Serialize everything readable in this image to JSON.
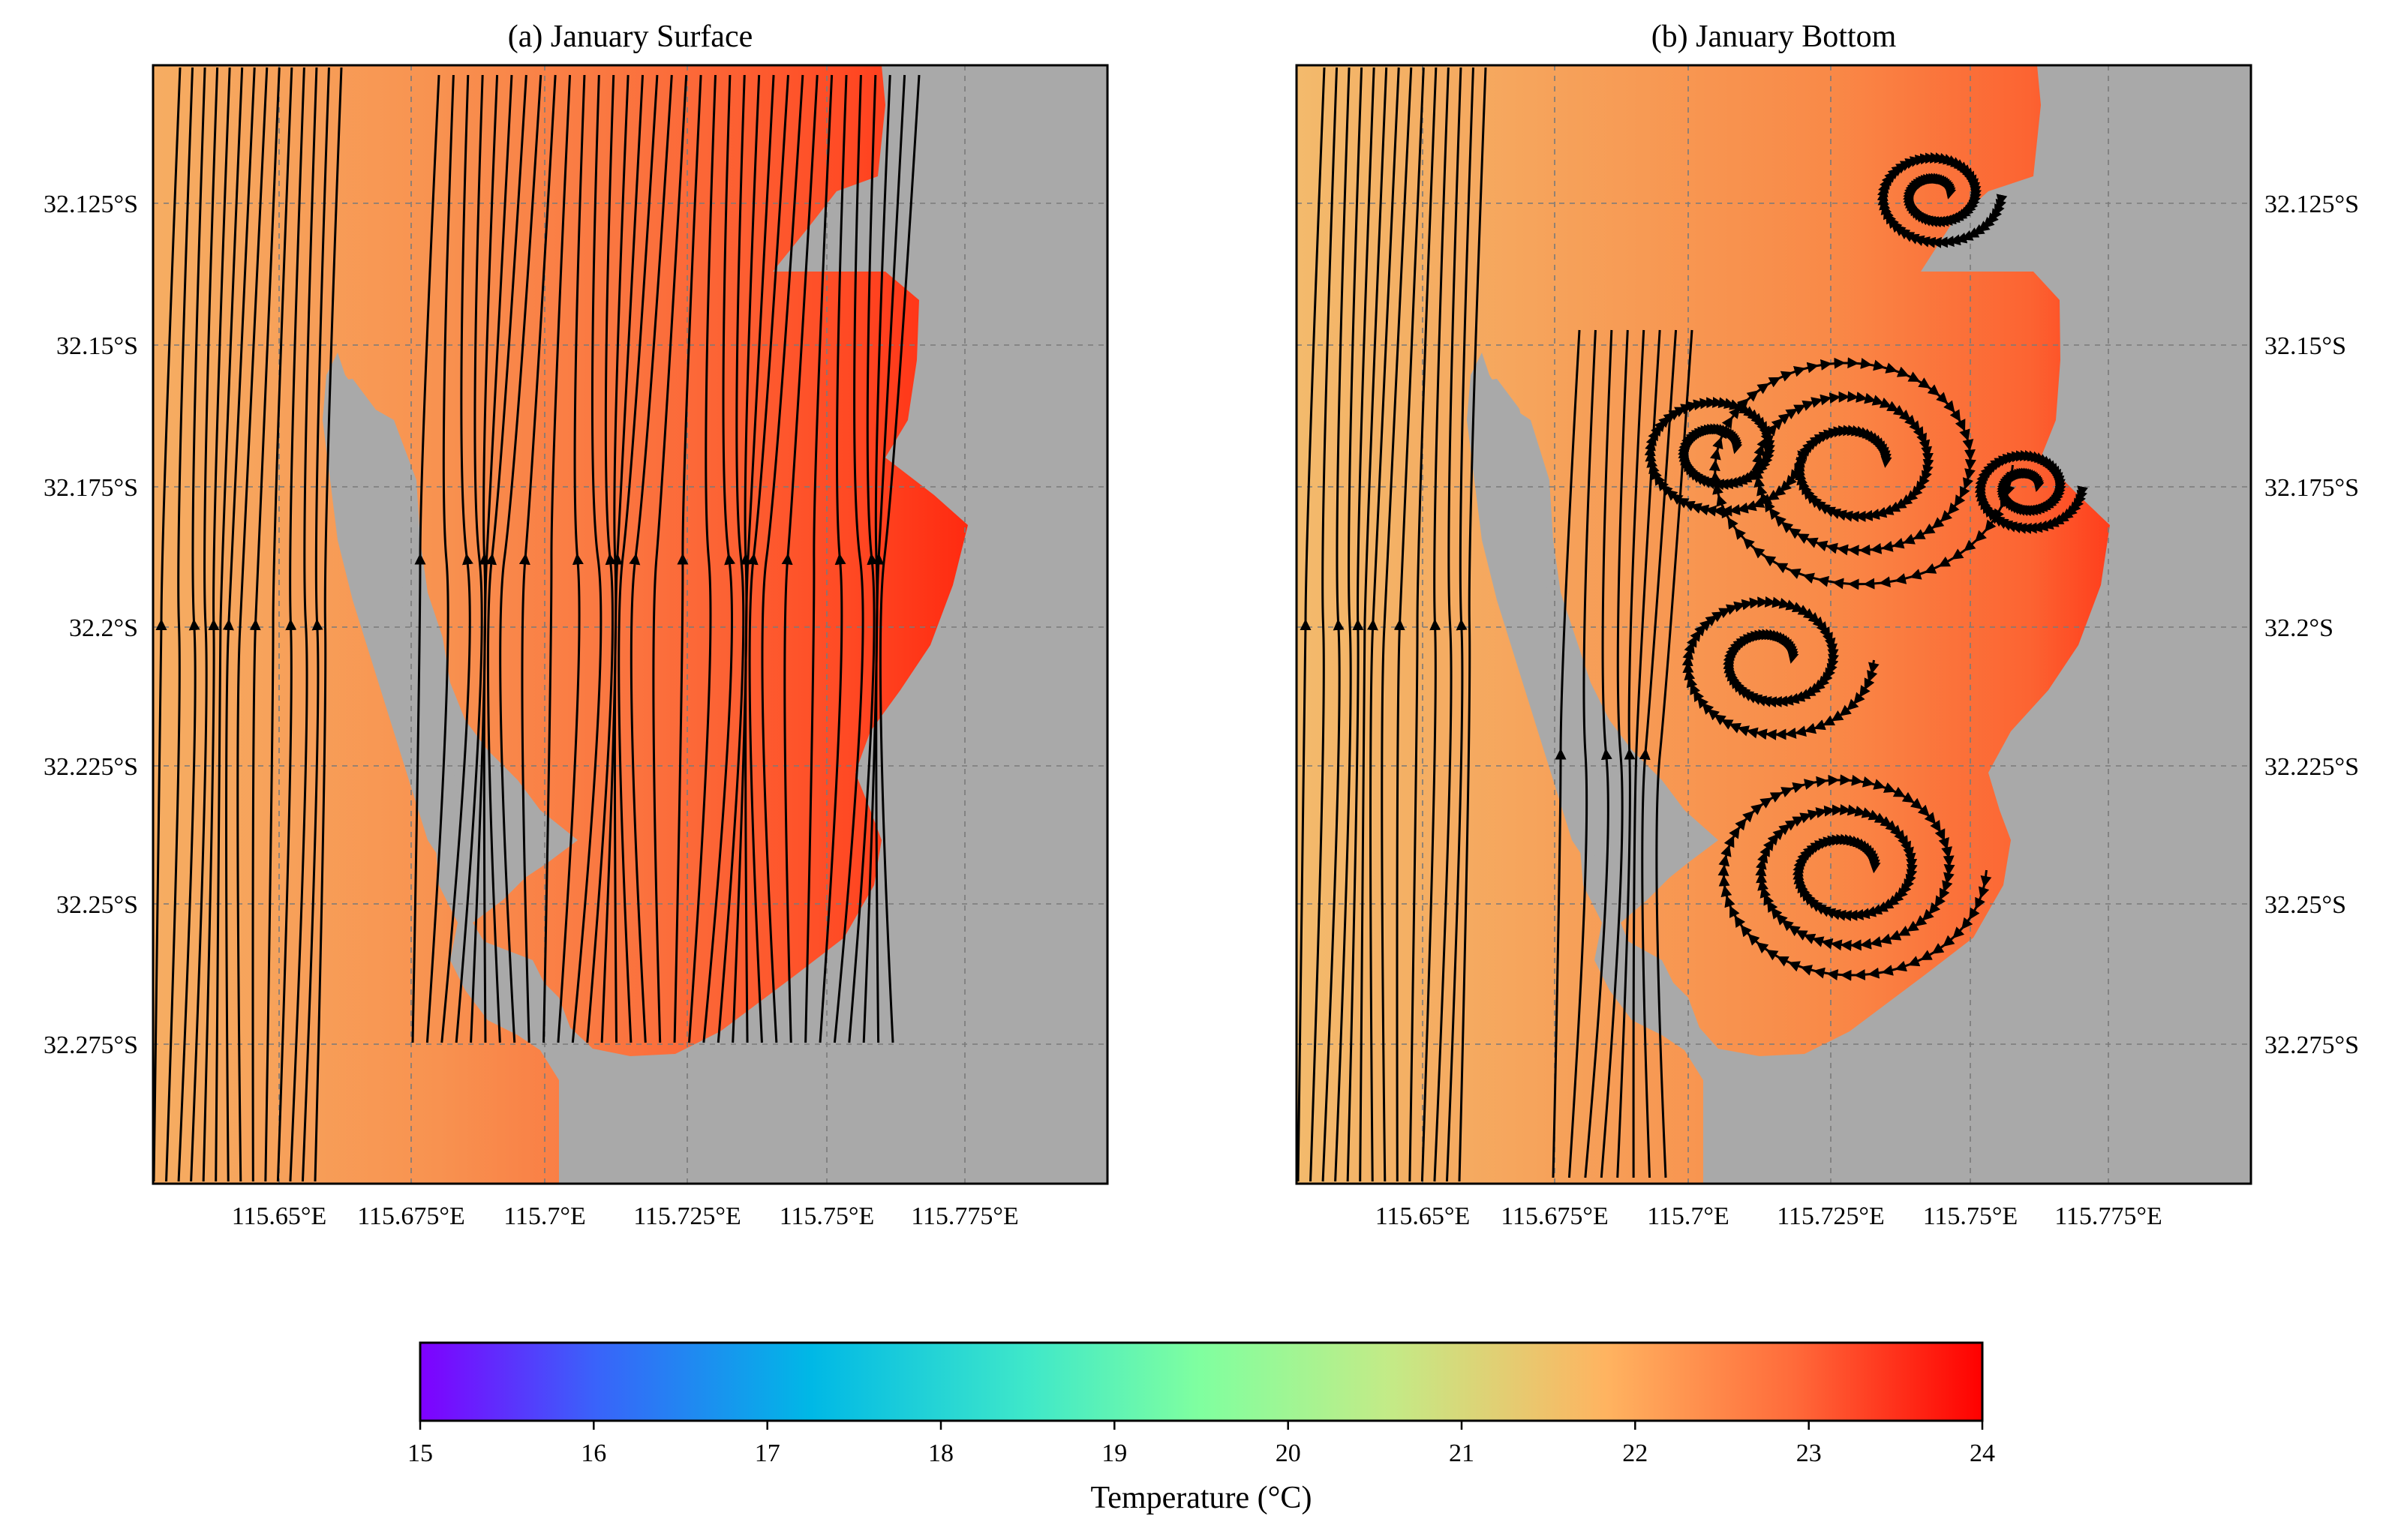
{
  "figure": {
    "type": "map",
    "colormap": "rainbow",
    "land_color": "#a9a9a9",
    "grid": true,
    "grid_style": "dashed",
    "arrow_color": "#000000"
  },
  "panels": [
    {
      "id": "a",
      "title": "(a) January Surface",
      "lat_label_side": "left",
      "field_note": "warmer (red) toward the eastern shore, flow mostly northward"
    },
    {
      "id": "b",
      "title": "(b) January Bottom",
      "lat_label_side": "right",
      "field_note": "eddies and recirculation inside the bay"
    }
  ],
  "lon_ticks": [
    "115.65°E",
    "115.675°E",
    "115.7°E",
    "115.725°E",
    "115.75°E",
    "115.775°E"
  ],
  "lat_ticks": [
    "32.125°S",
    "32.15°S",
    "32.175°S",
    "32.2°S",
    "32.225°S",
    "32.25°S",
    "32.275°S"
  ],
  "colorbar": {
    "label": "Temperature (°C)",
    "min": 15,
    "max": 24,
    "ticks": [
      "15",
      "16",
      "17",
      "18",
      "19",
      "20",
      "21",
      "22",
      "23",
      "24"
    ],
    "colors": [
      "#7f00ff",
      "#3a62fa",
      "#00b8e6",
      "#3fe8c9",
      "#80ff9f",
      "#c3eb87",
      "#ffb360",
      "#ff8a4a",
      "#ff4e2a",
      "#ff0000"
    ]
  }
}
